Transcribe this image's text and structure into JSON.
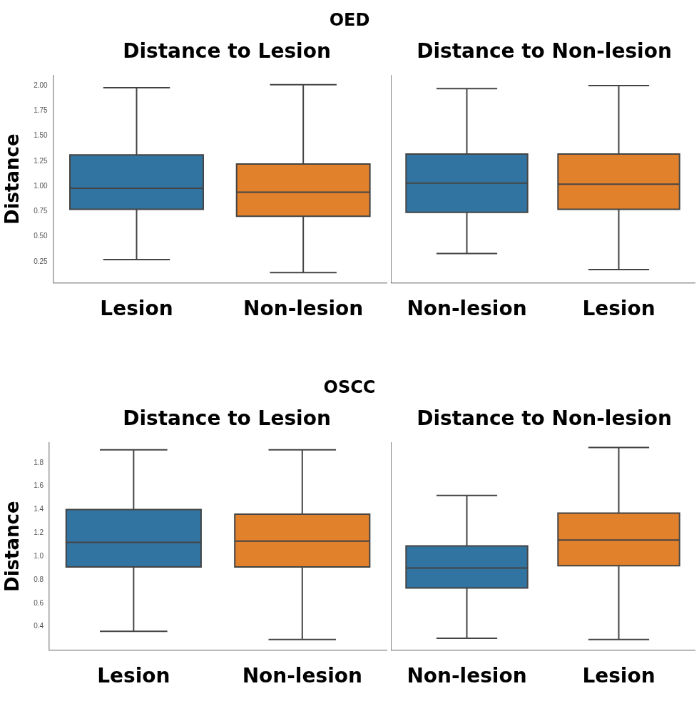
{
  "chart_data": [
    {
      "type": "box",
      "title": "Distance to Lesion",
      "ylabel": "Distance",
      "annotations": [
        "OED"
      ],
      "categories": [
        "Lesion",
        "Non-lesion"
      ],
      "colors": [
        "#3274a1",
        "#e1812c"
      ],
      "boxes": [
        {
          "low": 0.27,
          "q1": 0.77,
          "median": 0.98,
          "q3": 1.31,
          "high": 1.98
        },
        {
          "low": 0.14,
          "q1": 0.7,
          "median": 0.94,
          "q3": 1.22,
          "high": 2.01
        }
      ],
      "ylim": [
        0.04,
        2.1
      ],
      "yticks": [
        {
          "value": 0.25,
          "label": "0.25"
        },
        {
          "value": 0.5,
          "label": "0.50"
        },
        {
          "value": 0.75,
          "label": "0.75"
        },
        {
          "value": 1,
          "label": "1.00"
        },
        {
          "value": 1.25,
          "label": "1.25"
        },
        {
          "value": 1.5,
          "label": "1.50"
        },
        {
          "value": 1.75,
          "label": "1.75"
        },
        {
          "value": 2,
          "label": "2.00"
        }
      ]
    },
    {
      "type": "box",
      "title": "Distance to Non-lesion",
      "categories": [
        "Non-lesion",
        "Lesion"
      ],
      "colors": [
        "#3274a1",
        "#e1812c"
      ],
      "boxes": [
        {
          "low": 0.33,
          "q1": 0.74,
          "median": 1.03,
          "q3": 1.32,
          "high": 1.97
        },
        {
          "low": 0.17,
          "q1": 0.77,
          "median": 1.02,
          "q3": 1.32,
          "high": 2.0
        }
      ],
      "ylim": [
        0.04,
        2.1
      ],
      "tick_labels": "x"
    },
    {
      "type": "box",
      "title": "Distance to Lesion",
      "ylabel": "Distance",
      "annotations": [
        "OSCC"
      ],
      "categories": [
        "Lesion",
        "Non-lesion"
      ],
      "colors": [
        "#3274a1",
        "#e1812c"
      ],
      "boxes": [
        {
          "low": 0.36,
          "q1": 0.91,
          "median": 1.12,
          "q3": 1.4,
          "high": 1.91
        },
        {
          "low": 0.29,
          "q1": 0.91,
          "median": 1.13,
          "q3": 1.36,
          "high": 1.91
        }
      ],
      "ylim": [
        0.2,
        1.97
      ],
      "yticks": [
        {
          "value": 0.4,
          "label": "0.4"
        },
        {
          "value": 0.6,
          "label": "0.6"
        },
        {
          "value": 0.8,
          "label": "0.8"
        },
        {
          "value": 1,
          "label": "1.0"
        },
        {
          "value": 1.2,
          "label": "1.2"
        },
        {
          "value": 1.4,
          "label": "1.4"
        },
        {
          "value": 1.6,
          "label": "1.6"
        },
        {
          "value": 1.8,
          "label": "1.8"
        }
      ]
    },
    {
      "type": "box",
      "title": "Distance to Non-lesion",
      "categories": [
        "Non-lesion",
        "Lesion"
      ],
      "colors": [
        "#3274a1",
        "#e1812c"
      ],
      "boxes": [
        {
          "low": 0.3,
          "q1": 0.73,
          "median": 0.9,
          "q3": 1.09,
          "high": 1.52
        },
        {
          "low": 0.29,
          "q1": 0.92,
          "median": 1.14,
          "q3": 1.37,
          "high": 1.93
        }
      ],
      "ylim": [
        0.2,
        1.97
      ],
      "tick_labels": "x"
    }
  ]
}
